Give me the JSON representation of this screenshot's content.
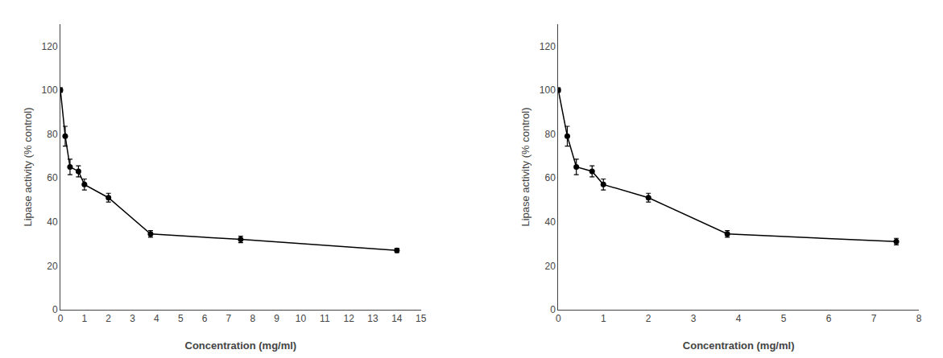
{
  "chart_data": [
    {
      "type": "line",
      "xlabel": "Concentration (mg/ml)",
      "ylabel": "Lipase activity (% control)",
      "x": [
        0.0,
        0.2,
        0.4,
        0.75,
        1.0,
        2.0,
        3.75,
        7.5,
        14.0
      ],
      "series": [
        {
          "color": "#000000",
          "marker": "circle",
          "values": [
            100.0,
            79.0,
            65.0,
            63.0,
            57.0,
            51.0,
            34.5,
            32.0,
            27.0
          ],
          "yerr": [
            1.0,
            4.5,
            3.5,
            2.5,
            2.5,
            2.0,
            1.5,
            1.5,
            1.0
          ]
        }
      ],
      "xlim": [
        0,
        15
      ],
      "xticks": [
        0,
        1,
        2,
        3,
        4,
        5,
        6,
        7,
        8,
        9,
        10,
        11,
        12,
        13,
        14,
        15
      ],
      "ylim": [
        0,
        130
      ],
      "yticks": [
        0,
        20,
        40,
        60,
        80,
        100,
        120
      ],
      "grid": false
    },
    {
      "type": "line",
      "xlabel": "Concentration (mg/ml)",
      "ylabel": "Lipase activity (% control)",
      "x": [
        0.0,
        0.2,
        0.4,
        0.75,
        1.0,
        2.0,
        3.75,
        7.5
      ],
      "series": [
        {
          "color": "#000000",
          "marker": "circle",
          "values": [
            100.0,
            79.0,
            65.0,
            63.0,
            57.0,
            51.0,
            34.5,
            31.0
          ],
          "yerr": [
            1.0,
            4.5,
            3.5,
            2.5,
            2.5,
            2.0,
            1.5,
            1.5
          ]
        }
      ],
      "xlim": [
        0,
        8
      ],
      "xticks": [
        0,
        1,
        2,
        3,
        4,
        5,
        6,
        7,
        8
      ],
      "ylim": [
        0,
        130
      ],
      "yticks": [
        0,
        20,
        40,
        60,
        80,
        100,
        120
      ],
      "grid": false
    }
  ]
}
